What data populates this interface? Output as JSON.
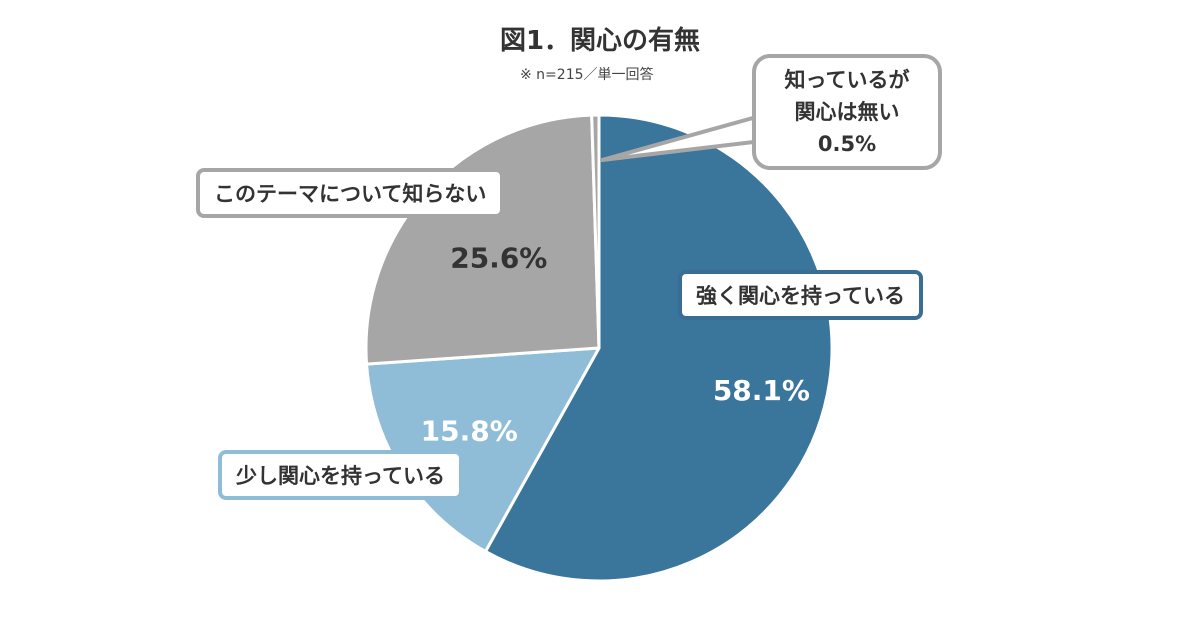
{
  "title": "図1．関心の有無",
  "note": "※ n=215／単一回答",
  "chart_data": {
    "type": "pie",
    "title": "図1．関心の有無",
    "start": "top, clockwise",
    "slices": [
      {
        "label": "強く関心を持っている",
        "value": 58.1,
        "value_label": "58.1%",
        "color": "#3a759c",
        "label_color": "#ffffff"
      },
      {
        "label": "少し関心を持っている",
        "value": 15.8,
        "value_label": "15.8%",
        "color": "#8fbdd7",
        "label_color": "#ffffff"
      },
      {
        "label": "このテーマについて知らない",
        "value": 25.6,
        "value_label": "25.6%",
        "color": "#a6a6a6",
        "label_color": "#333333"
      },
      {
        "label": "知っているが関心は無い",
        "value": 0.5,
        "value_label": "0.5%",
        "color": "#a6a6a6",
        "label_color": "#333333"
      }
    ]
  },
  "callouts": {
    "strong": "強く関心を持っている",
    "little": "少し関心を持っている",
    "unknown": "このテーマについて知らない",
    "none_line1": "知っているが",
    "none_line2": "関心は無い",
    "none_line3": "0.5%"
  }
}
